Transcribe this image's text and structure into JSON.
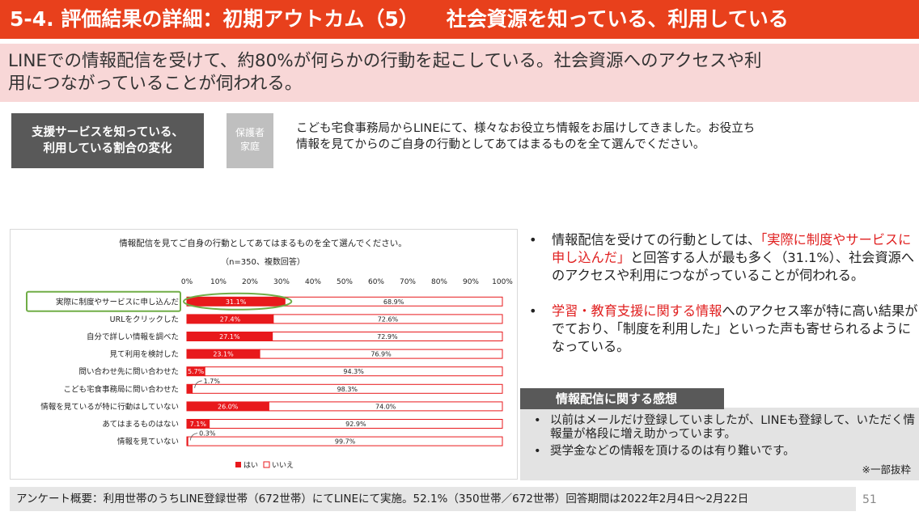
{
  "header": {
    "title_left": "5-4. 評価結果の詳細：初期アウトカム（5）",
    "title_right": "社会資源を知っている、利用している"
  },
  "lead": {
    "line1": "LINEでの情報配信を受けて、約80%が何らかの行動を起こしている。社会資源へのアクセスや利",
    "line2": "用につながっていることが伺われる。"
  },
  "section_label": {
    "line1": "支援サービスを知っている、",
    "line2": "利用している割合の変化"
  },
  "target_label": {
    "line1": "保護者",
    "line2": "家庭"
  },
  "question": {
    "line1": "こども宅食事務局からLINEにて、様々なお役立ち情報をお届けしてきました。お役立ち",
    "line2": "情報を見てからのご自身の行動としてあてはまるものを全て選んでください。"
  },
  "chart_data": {
    "type": "bar",
    "orientation": "horizontal",
    "stacked": "percent",
    "title": "情報配信を見てご自身の行動としてあてはまるものを全て選んでください。",
    "subtitle": "（n=350、複数回答）",
    "xlim": [
      0,
      100
    ],
    "xticks": [
      "0%",
      "10%",
      "20%",
      "30%",
      "40%",
      "50%",
      "60%",
      "70%",
      "80%",
      "90%",
      "100%"
    ],
    "categories": [
      "実際に制度やサービスに申し込んだ",
      "URLをクリックした",
      "自分で詳しい情報を調べた",
      "見て利用を検討した",
      "問い合わせ先に問い合わせた",
      "こども宅食事務局に問い合わせた",
      "情報を見ているが特に行動はしていない",
      "あてはまるものはない",
      "情報を見ていない"
    ],
    "series": [
      {
        "name": "はい",
        "color": "#e8191c",
        "values": [
          31.1,
          27.4,
          27.1,
          23.1,
          5.7,
          1.7,
          26.0,
          7.1,
          0.3
        ],
        "labels": [
          "31.1%",
          "27.4%",
          "27.1%",
          "23.1%",
          "5.7%",
          "1.7%",
          "26.0%",
          "7.1%",
          "0.3%"
        ]
      },
      {
        "name": "いいえ",
        "color": "#ffffff",
        "values": [
          68.9,
          72.6,
          72.9,
          76.9,
          94.3,
          98.3,
          74.0,
          92.9,
          99.7
        ],
        "labels": [
          "68.9%",
          "72.6%",
          "72.9%",
          "76.9%",
          "94.3%",
          "98.3%",
          "74.0%",
          "92.9%",
          "99.7%"
        ]
      }
    ],
    "legend": [
      "はい",
      "いいえ"
    ],
    "legend_position": "bottom",
    "highlight_category": "実際に制度やサービスに申し込んだ",
    "grid": false
  },
  "bullets": [
    {
      "pre": "情報配信を受けての行動としては、",
      "red": "「実際に制度やサービスに申し込んだ」",
      "post": "と回答する人が最も多く（31.1%）、社会資源へのアクセスや利用につながっていることが伺われる。"
    },
    {
      "pre": "",
      "red": "学習・教育支援に関する情報",
      "post": "へのアクセス率が特に高い結果がでており、「制度を利用した」といった声も寄せられるようになっている。"
    }
  ],
  "bullet_mark": "•",
  "impressions": {
    "title": "情報配信に関する感想",
    "items": [
      "以前はメールだけ登録していましたが、LINEも登録して、いただく情報量が格段に増え助かっています。",
      "奨学金などの情報を頂けるのは有り難いです。"
    ],
    "note": "※一部抜粋"
  },
  "footer": "アンケート概要：利用世帯のうちLINE登録世帯（672世帯）にてLINEにて実施。52.1%（350世帯／672世帯）回答期間は2022年2月4日～2月22日",
  "page_number": "51",
  "colors": {
    "header": "#e8401c",
    "lead_bg": "#f8d7d7",
    "bar": "#e8191c",
    "highlight": "#70ad47"
  }
}
